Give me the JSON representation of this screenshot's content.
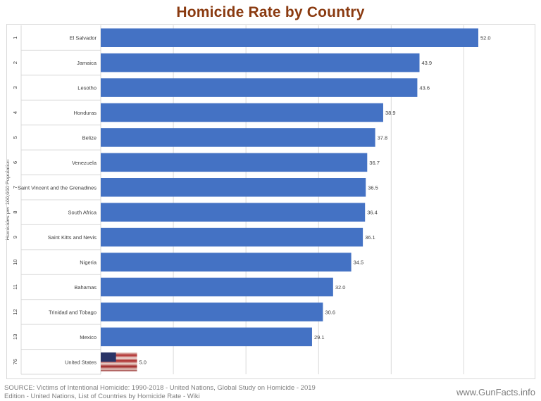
{
  "title": "Homicide Rate by Country",
  "source": "SOURCE: Victims of Intentional Homicide: 1990-2018 - United Nations, Global Study on Homicide - 2019 Edition - United Nations, List of Countries by Homicide Rate - Wiki",
  "brand": "www.GunFacts.info",
  "colors": {
    "bar": "#4472c4",
    "title": "#8a3a10",
    "grid": "#d9d9d9"
  },
  "chart_data": {
    "type": "bar",
    "orientation": "horizontal",
    "title": "Homicide Rate by Country",
    "ylabel": "Homicides per 100,000 Population",
    "xlim": [
      0,
      55
    ],
    "grid": true,
    "legend": "none",
    "ranks": [
      "1",
      "2",
      "3",
      "4",
      "5",
      "6",
      "7",
      "8",
      "9",
      "10",
      "11",
      "12",
      "13",
      "76"
    ],
    "categories": [
      "El Salvador",
      "Jamaica",
      "Lesotho",
      "Honduras",
      "Belize",
      "Venezuela",
      "Saint Vincent and the Grenadines",
      "South Africa",
      "Saint Kitts and Nevis",
      "Nigeria",
      "Bahamas",
      "Trinidad and Tobago",
      "Mexico",
      "United States"
    ],
    "values": [
      52.0,
      43.9,
      43.6,
      38.9,
      37.8,
      36.7,
      36.5,
      36.4,
      36.1,
      34.5,
      32.0,
      30.6,
      29.1,
      5.0
    ],
    "data_labels": [
      "52.0",
      "43.9",
      "43.6",
      "38.9",
      "37.8",
      "36.7",
      "36.5",
      "36.4",
      "36.1",
      "34.5",
      "32.0",
      "30.6",
      "29.1",
      "5.0"
    ],
    "highlight_flag": "United States"
  }
}
